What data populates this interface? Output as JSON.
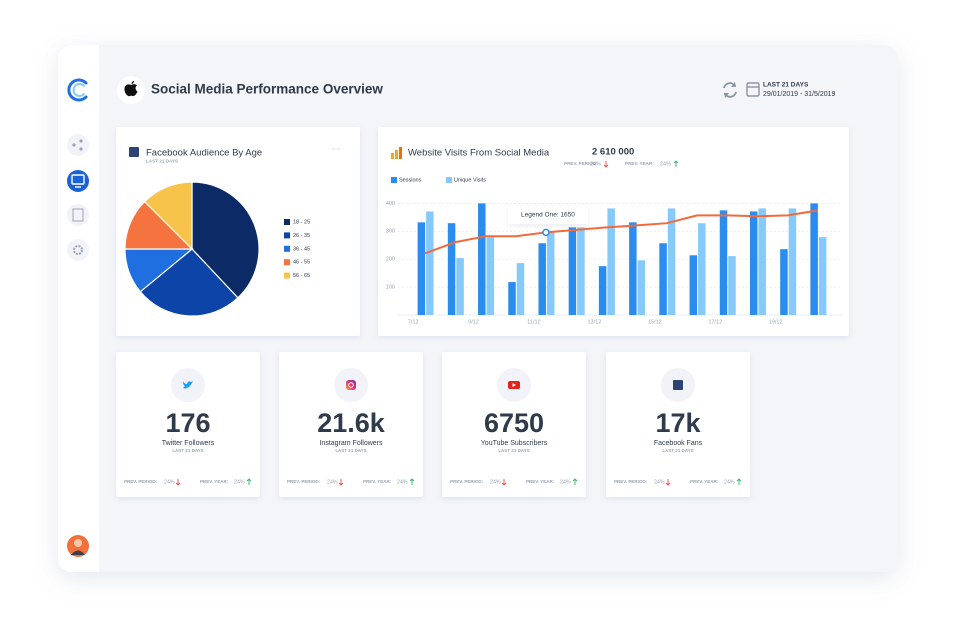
{
  "header": {
    "title": "Social Media Performance Overview",
    "period_label": "LAST 21 DAYS",
    "date_range": "29/01/2019 - 31/5/2019"
  },
  "chart_data": [
    {
      "type": "pie",
      "title": "Facebook Audience By Age",
      "subtitle": "LAST 21 DAYS",
      "categories": [
        "18 - 25",
        "26 - 35",
        "36 - 45",
        "46 - 55",
        "56 - 65"
      ],
      "values": [
        38,
        26,
        11,
        12.5,
        12.5
      ],
      "colors": [
        "#0b2a66",
        "#0c44a8",
        "#1f6fe0",
        "#f5733f",
        "#f8c34a"
      ],
      "legend": "right"
    },
    {
      "type": "bar",
      "title": "Website Visits From Social Media",
      "total": "2 610 000",
      "comparisons": [
        {
          "label": "PREV. PERIOD:",
          "value": "24%"
        },
        {
          "label": "PREV. YEAR:",
          "value": "24%"
        }
      ],
      "categories": [
        "7/12",
        null,
        "9/12",
        null,
        "11/12",
        null,
        "13/12",
        null,
        "15/12",
        null,
        "17/12",
        null,
        "19/12",
        null
      ],
      "series": [
        {
          "name": "Sessions",
          "color": "#2b8cf0",
          "values": [
            332,
            329,
            400,
            118,
            257,
            314,
            175,
            332,
            257,
            214,
            375,
            371,
            236,
            400
          ]
        },
        {
          "name": "Unique Visits",
          "color": "#86cafb",
          "values": [
            371,
            204,
            279,
            186,
            300,
            314,
            382,
            196,
            382,
            329,
            211,
            382,
            382,
            279
          ]
        },
        {
          "type": "line",
          "color": "#f26a3b",
          "values": [
            221,
            261,
            282,
            282,
            296,
            305,
            314,
            321,
            329,
            357,
            357,
            354,
            357,
            375
          ]
        }
      ],
      "ylim": [
        0,
        430
      ],
      "yticks": [
        100,
        200,
        300,
        400
      ],
      "grid": true,
      "legend": "top-left",
      "annotation": "Legend One: 1650"
    }
  ],
  "stat_cards": [
    {
      "value": "176",
      "label": "Twitter Followers",
      "period": "LAST 21 DAYS",
      "prev_period_label": "PREV. PERIOD:",
      "prev_period": "24%",
      "prev_year_label": "PREV. YEAR:",
      "prev_year": "24%"
    },
    {
      "value": "21.6k",
      "label": "Instagram Followers",
      "period": "LAST 21 DAYS",
      "prev_period_label": "PREV. PERIOD:",
      "prev_period": "24%",
      "prev_year_label": "PREV. YEAR:",
      "prev_year": "24%"
    },
    {
      "value": "6750",
      "label": "YouTube Subscribers",
      "period": "LAST 21 DAYS",
      "prev_period_label": "PREV. PERIOD:",
      "prev_period": "24%",
      "prev_year_label": "PREV. YEAR:",
      "prev_year": "24%"
    },
    {
      "value": "17k",
      "label": "Facebook Fans",
      "period": "LAST 21 DAYS",
      "prev_period_label": "PREV. PERIOD:",
      "prev_period": "24%",
      "prev_year_label": "PREV. YEAR:",
      "prev_year": "24%"
    }
  ]
}
